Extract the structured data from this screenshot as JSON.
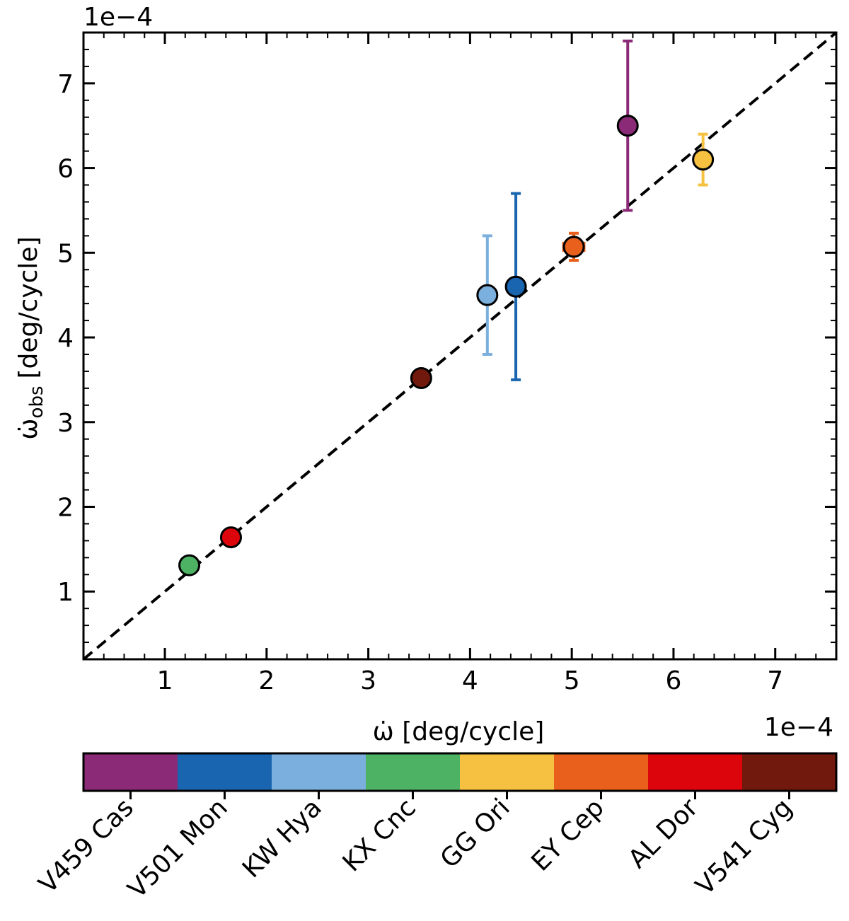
{
  "chart_data": {
    "type": "scatter",
    "title": "",
    "xlabel": "ω̇ [deg/cycle]",
    "ylabel_main": "ω̇",
    "ylabel_sub": "obs",
    "ylabel_units": "[deg/cycle]",
    "x_offset_label": "1e−4",
    "y_offset_label": "1e−4",
    "xlim": [
      0.2,
      7.6
    ],
    "ylim": [
      0.2,
      7.6
    ],
    "x_ticks": [
      1,
      2,
      3,
      4,
      5,
      6,
      7
    ],
    "y_ticks": [
      1,
      2,
      3,
      4,
      5,
      6,
      7
    ],
    "x_tick_labels": [
      "1",
      "2",
      "3",
      "4",
      "5",
      "6",
      "7"
    ],
    "y_tick_labels": [
      "1",
      "2",
      "3",
      "4",
      "5",
      "6",
      "7"
    ],
    "reference_line": "y = x (dashed)",
    "grid": false,
    "series": [
      {
        "name": "V459 Cas",
        "color": "#8b2a77",
        "x": 5.55,
        "y": 6.5,
        "yerr": 1.0,
        "xerr": 0
      },
      {
        "name": "V501 Mon",
        "color": "#1965b0",
        "x": 4.45,
        "y": 4.6,
        "yerr": 1.1,
        "xerr": 0
      },
      {
        "name": "KW Hya",
        "color": "#7bafde",
        "x": 4.17,
        "y": 4.5,
        "yerr": 0.7,
        "xerr": 0
      },
      {
        "name": "KX Cnc",
        "color": "#4eb265",
        "x": 1.24,
        "y": 1.31,
        "yerr": 0,
        "xerr": 0
      },
      {
        "name": "GG Ori",
        "color": "#f6c141",
        "x": 6.29,
        "y": 6.1,
        "yerr": 0.3,
        "xerr": 0
      },
      {
        "name": "EY Cep",
        "color": "#e8601c",
        "x": 5.02,
        "y": 5.07,
        "yerr": 0.16,
        "xerr": 0.1
      },
      {
        "name": "AL Dor",
        "color": "#dc050c",
        "x": 1.65,
        "y": 1.64,
        "yerr": 0,
        "xerr": 0
      },
      {
        "name": "V541 Cyg",
        "color": "#72190e",
        "x": 3.52,
        "y": 3.52,
        "yerr": 0,
        "xerr": 0
      }
    ],
    "colorbar": {
      "labels": [
        "V459 Cas",
        "V501 Mon",
        "KW Hya",
        "KX Cnc",
        "GG Ori",
        "EY Cep",
        "AL Dor",
        "V541 Cyg"
      ],
      "colors": [
        "#8b2a77",
        "#1965b0",
        "#7bafde",
        "#4eb265",
        "#f6c141",
        "#e8601c",
        "#dc050c",
        "#72190e"
      ]
    }
  }
}
